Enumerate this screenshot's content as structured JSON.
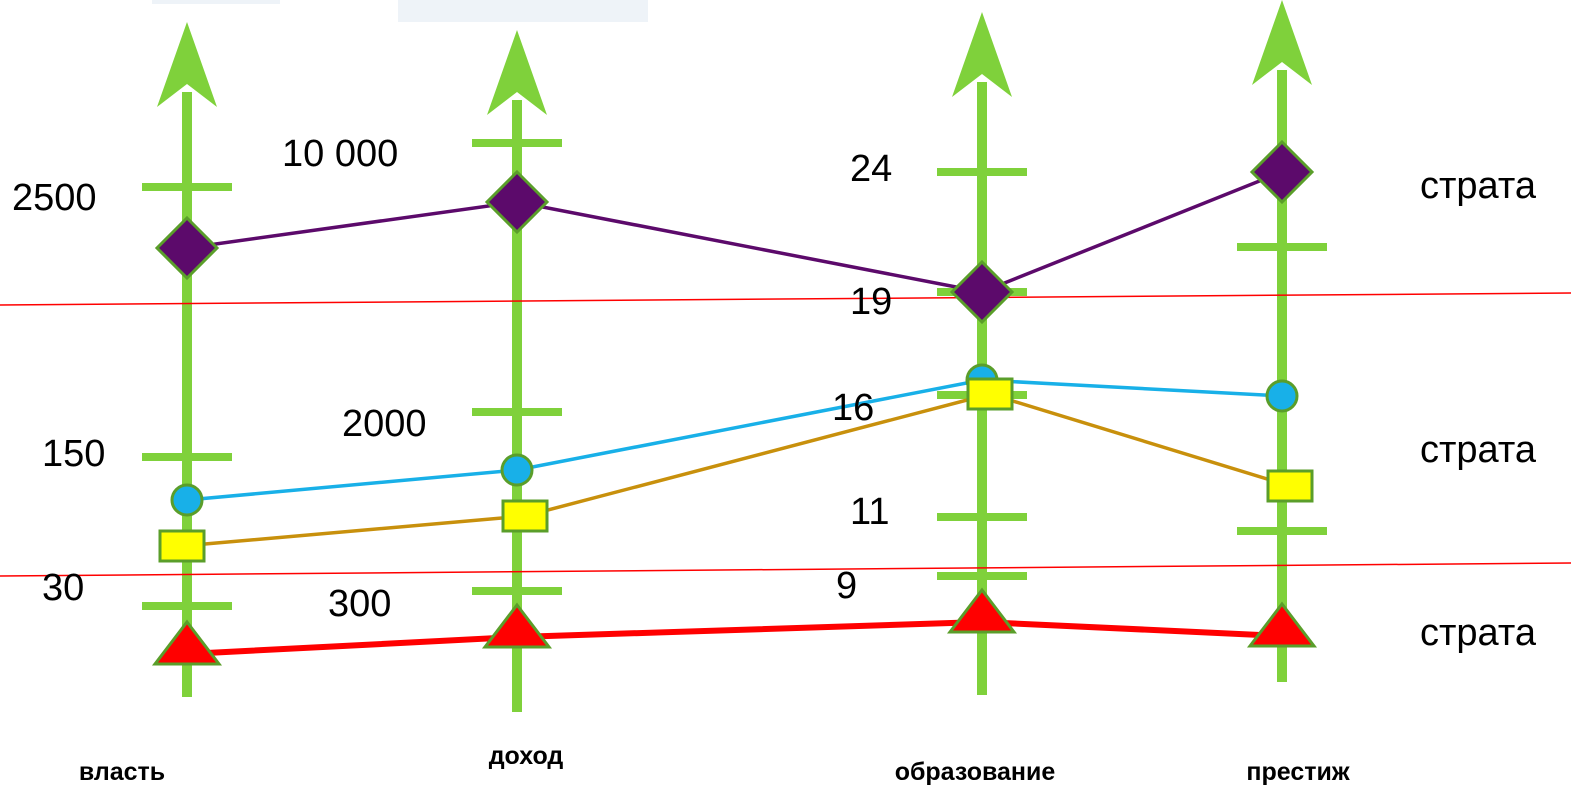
{
  "axes": [
    {
      "id": "power",
      "name": "власть",
      "ticks": [
        "2500",
        "150",
        "30"
      ]
    },
    {
      "id": "income",
      "name": "доход",
      "ticks": [
        "10 000",
        "2000",
        "300"
      ]
    },
    {
      "id": "education",
      "name": "образование",
      "ticks": [
        "24",
        "19",
        "16",
        "11",
        "9"
      ]
    },
    {
      "id": "prestige",
      "name": "престиж",
      "ticks": []
    }
  ],
  "strata_labels": [
    "страта",
    "страта",
    "страта"
  ],
  "series": [
    {
      "marker": "diamond",
      "color": "#5c0a6b",
      "fill": "#5c0a6b"
    },
    {
      "marker": "circle",
      "color": "#18b0e8",
      "fill": "#18b0e8"
    },
    {
      "marker": "square",
      "color": "#c8900c",
      "fill": "#ffff00"
    },
    {
      "marker": "triangle",
      "color": "#ff0000",
      "fill": "#ff0000"
    }
  ],
  "colors": {
    "axis": "#7fd13b",
    "marker_outline": "#5a9e2a",
    "strata_boundary": "#ff0000"
  }
}
